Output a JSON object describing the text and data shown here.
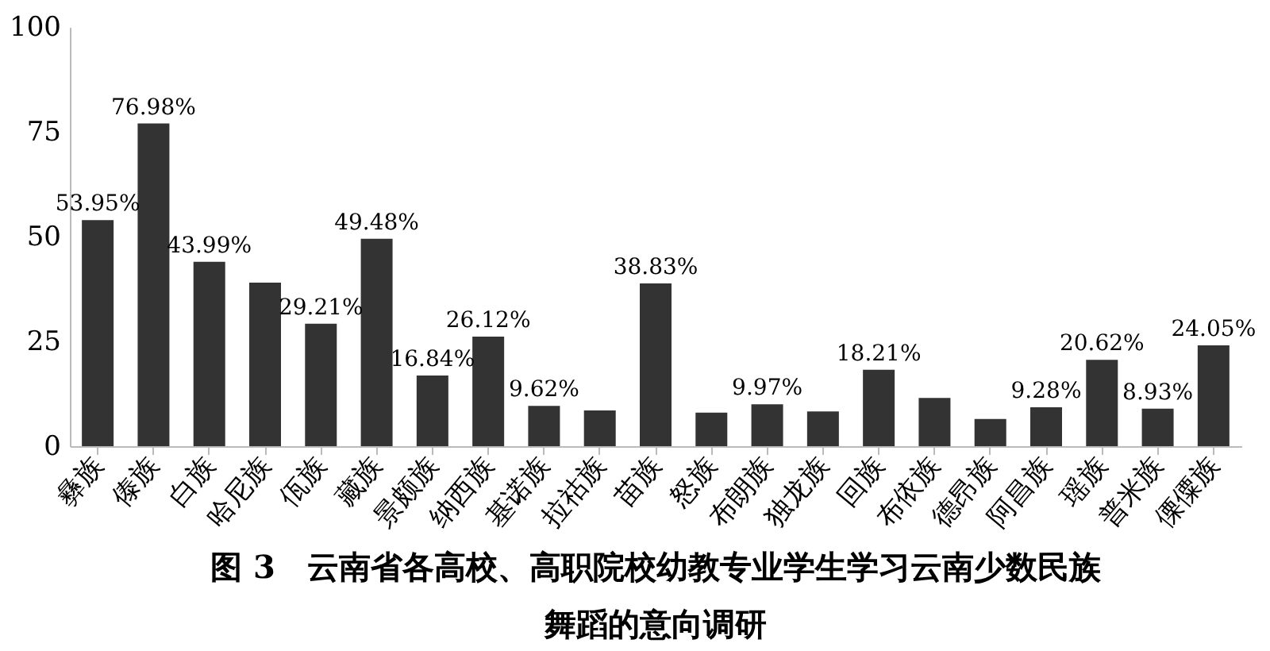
{
  "chart_data": {
    "type": "bar",
    "title": "图 3　云南省各高校、高职院校幼教专业学生学习云南少数民族舞蹈的意向调研",
    "categories": [
      "彝族",
      "傣族",
      "白族",
      "哈尼族",
      "佤族",
      "藏族",
      "景颇族",
      "纳西族",
      "基诺族",
      "拉祜族",
      "苗族",
      "怒族",
      "布朗族",
      "独龙族",
      "回族",
      "布依族",
      "德昂族",
      "阿昌族",
      "瑶族",
      "普米族",
      "傈僳族"
    ],
    "values": [
      53.95,
      76.98,
      43.99,
      39,
      29.21,
      49.48,
      16.84,
      26.12,
      9.62,
      8.5,
      38.83,
      8,
      9.97,
      8.3,
      18.21,
      11.5,
      6.5,
      9.28,
      20.62,
      8.93,
      24.05
    ],
    "value_labels": [
      "53.95%",
      "76.98%",
      "43.99%",
      null,
      "29.21%",
      "49.48%",
      "16.84%",
      "26.12%",
      "9.62%",
      null,
      "38.83%",
      null,
      "9.97%",
      null,
      "18.21%",
      null,
      null,
      "9.28%",
      "20.62%",
      "8.93%",
      "24.05%"
    ],
    "color": "#333333",
    "ylim": [
      0,
      100
    ],
    "yticks": [
      0,
      25,
      50,
      75,
      100
    ],
    "grid": false
  }
}
